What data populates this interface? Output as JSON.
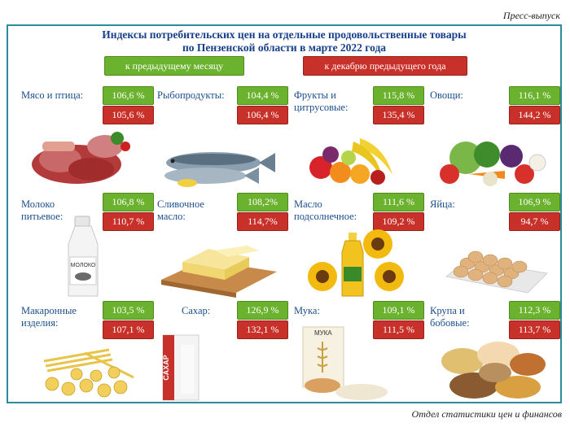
{
  "press_release": "Пресс-выпуск",
  "footer": "Отдел статистики цен и финансов",
  "title_line1": "Индексы потребительских цен на отдельные продовольственные товары",
  "title_line2": "по Пензенской области в марте 2022 года",
  "legend": {
    "prev_month": "к предыдущему месяцу",
    "prev_december": "к декабрю предыдущего года"
  },
  "colors": {
    "green": "#6bb22f",
    "red": "#c8302a",
    "title": "#17408b",
    "label": "#1b4e8c",
    "frame": "#2f8a9b"
  },
  "items": [
    {
      "label_lines": [
        "Мясо и птица:",
        ""
      ],
      "month": "106,6 %",
      "december": "105,6 %"
    },
    {
      "label_lines": [
        "Рыбопродукты:",
        ""
      ],
      "month": "104,4 %",
      "december": "106,4 %"
    },
    {
      "label_lines": [
        "Фрукты и",
        "цитрусовые:"
      ],
      "month": "115,8 %",
      "december": "135,4 %"
    },
    {
      "label_lines": [
        "Овощи:",
        ""
      ],
      "month": "116,1 %",
      "december": "144,2 %"
    },
    {
      "label_lines": [
        "Молоко",
        "питьевое:"
      ],
      "month": "106,8 %",
      "december": "110,7 %"
    },
    {
      "label_lines": [
        "Сливочное",
        "масло:"
      ],
      "month": "108,2%",
      "december": "114,7%"
    },
    {
      "label_lines": [
        "Масло",
        "подсолнечное:"
      ],
      "month": "111,6 %",
      "december": "109,2 %"
    },
    {
      "label_lines": [
        "Яйца:",
        ""
      ],
      "month": "106,9 %",
      "december": "94,7 %"
    },
    {
      "label_lines": [
        "Макаронные",
        "изделия:"
      ],
      "month": "103,5 %",
      "december": "107,1 %"
    },
    {
      "label_lines": [
        "Сахар:",
        ""
      ],
      "month": "126,9 %",
      "december": "132,1 %"
    },
    {
      "label_lines": [
        "Мука:",
        ""
      ],
      "month": "109,1 %",
      "december": "111,5 %"
    },
    {
      "label_lines": [
        "Крупа и",
        "бобовые:"
      ],
      "month": "112,3 %",
      "december": "113,7 %"
    }
  ],
  "pictures": {
    "milk_bottle_text": "МОЛОКО",
    "sugar_bag_text": "САХАР",
    "flour_bag_text": "МУКА"
  }
}
